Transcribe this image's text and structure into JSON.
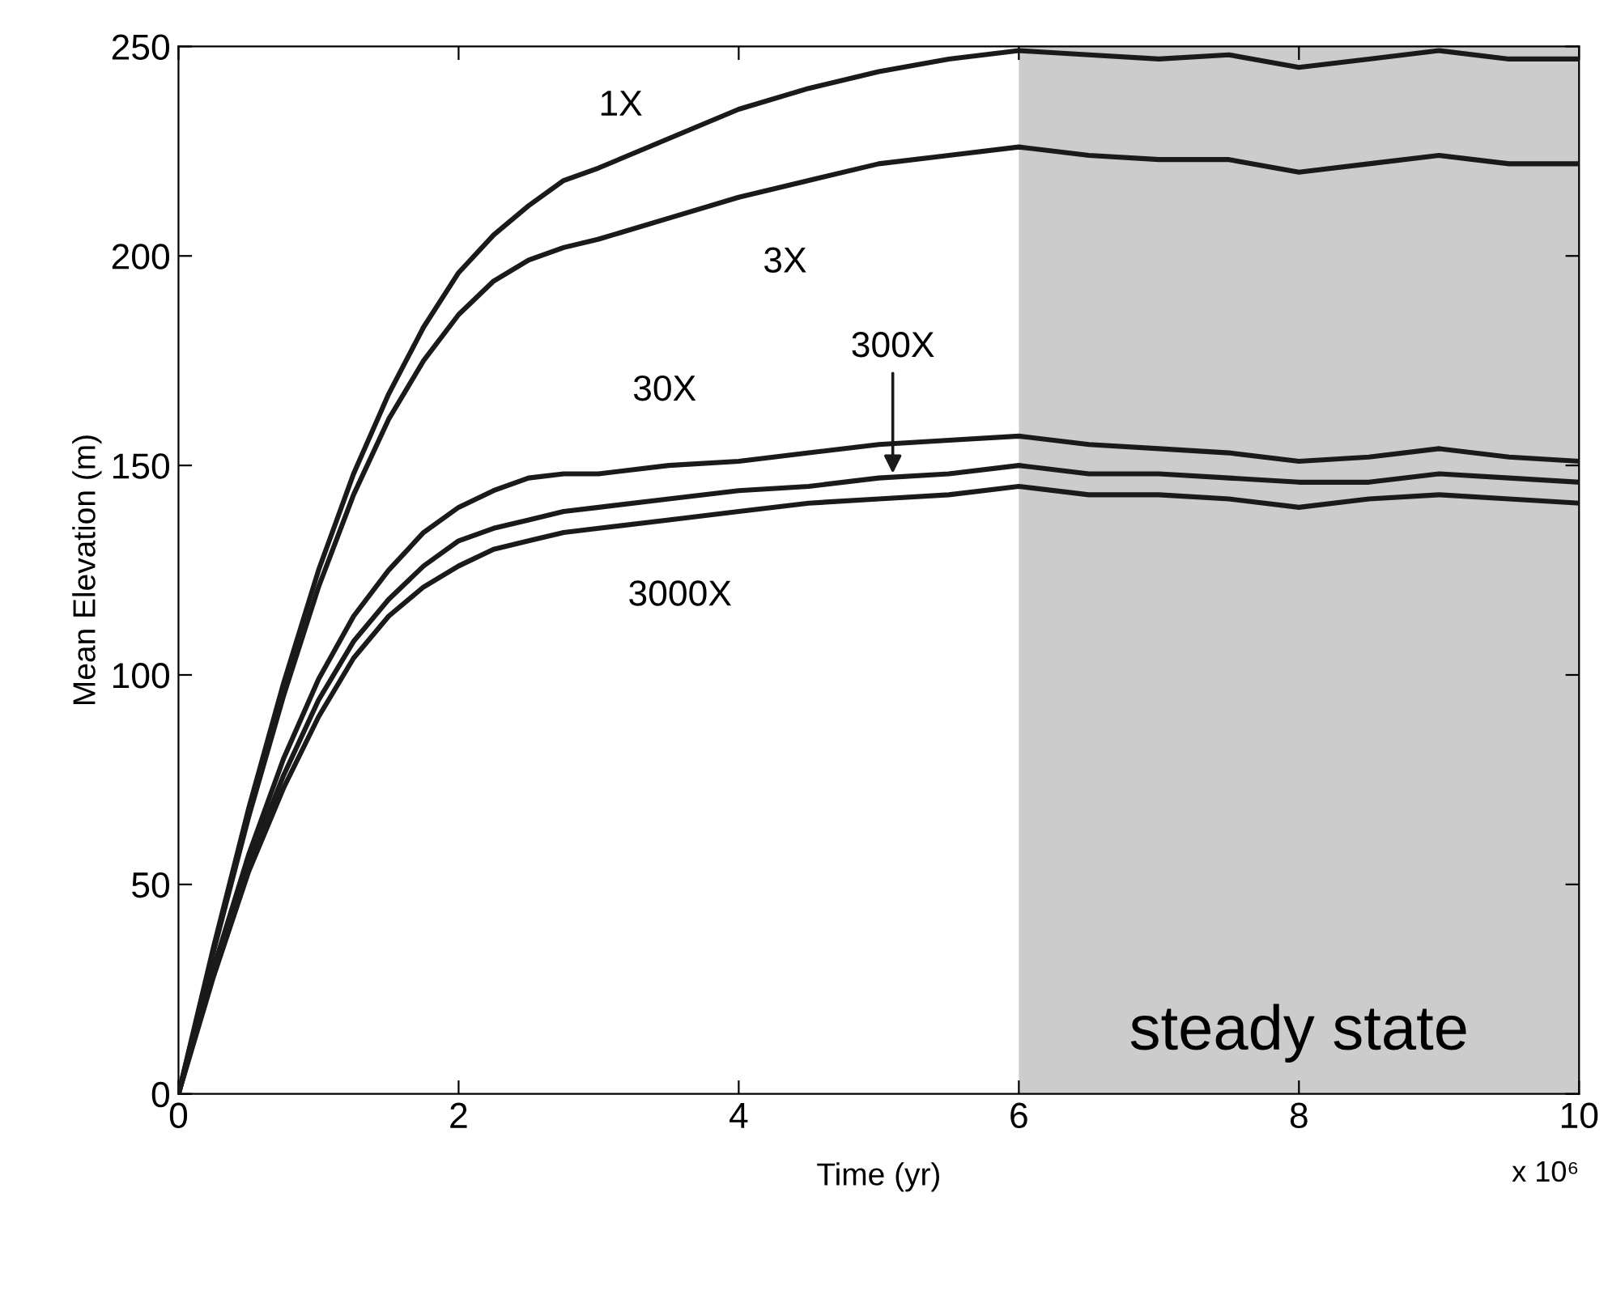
{
  "chart_data": {
    "type": "line",
    "xlabel": "Time (yr)",
    "ylabel": "Mean Elevation (m)",
    "x": [
      0,
      0.25,
      0.5,
      0.75,
      1,
      1.25,
      1.5,
      1.75,
      2,
      2.25,
      2.5,
      2.75,
      3,
      3.5,
      4,
      4.5,
      5,
      5.5,
      6,
      6.5,
      7,
      7.5,
      8,
      8.5,
      9,
      9.5,
      10
    ],
    "series": [
      {
        "color": "#1a1a1a",
        "values": [
          0,
          35,
          68,
          98,
          125,
          148,
          167,
          183,
          196,
          205,
          212,
          218,
          221,
          228,
          235,
          240,
          244,
          247,
          249,
          248,
          247,
          248,
          245,
          247,
          249,
          247,
          247
        ]
      },
      {
        "color": "#1a1a1a",
        "values": [
          0,
          34,
          66,
          95,
          121,
          143,
          161,
          175,
          186,
          194,
          199,
          202,
          204,
          209,
          214,
          218,
          222,
          224,
          226,
          224,
          223,
          223,
          220,
          222,
          224,
          222,
          222
        ]
      },
      {
        "color": "#1a1a1a",
        "values": [
          0,
          30,
          57,
          80,
          99,
          114,
          125,
          134,
          140,
          144,
          147,
          148,
          148,
          150,
          151,
          153,
          155,
          156,
          157,
          155,
          154,
          153,
          151,
          152,
          154,
          152,
          151
        ]
      },
      {
        "color": "#1a1a1a",
        "values": [
          0,
          29,
          55,
          76,
          94,
          108,
          118,
          126,
          132,
          135,
          137,
          139,
          140,
          142,
          144,
          145,
          147,
          148,
          150,
          148,
          148,
          147,
          146,
          146,
          148,
          147,
          146
        ]
      },
      {
        "color": "#1a1a1a",
        "values": [
          0,
          28,
          53,
          73,
          90,
          104,
          114,
          121,
          126,
          130,
          132,
          134,
          135,
          137,
          139,
          141,
          142,
          143,
          145,
          143,
          143,
          142,
          140,
          142,
          143,
          142,
          141
        ]
      }
    ],
    "annotations": [
      {
        "text": "1X",
        "x": 3.35,
        "y": 225
      },
      {
        "text": "3X",
        "x": 4.33,
        "y": 216
      },
      {
        "text": "30X",
        "x": 3.47,
        "y": 150
      },
      {
        "text": "300X",
        "x": 5.1,
        "y": 147
      },
      {
        "text": "3000X",
        "x": 3.58,
        "y": 137
      },
      "x 10⁶"
    ],
    "bands": [
      {
        "axis": "x",
        "from": 6,
        "to": 10,
        "label": "steady state",
        "color": "#cccccc"
      }
    ],
    "xlim": [
      0,
      10
    ],
    "xticks": [
      0,
      2,
      4,
      6,
      8,
      10
    ],
    "ylim": [
      0,
      250
    ],
    "yticks": [
      0,
      50,
      100,
      150,
      200,
      250
    ],
    "grid": false,
    "legend": false,
    "marker": "none",
    "line_style": "solid"
  }
}
